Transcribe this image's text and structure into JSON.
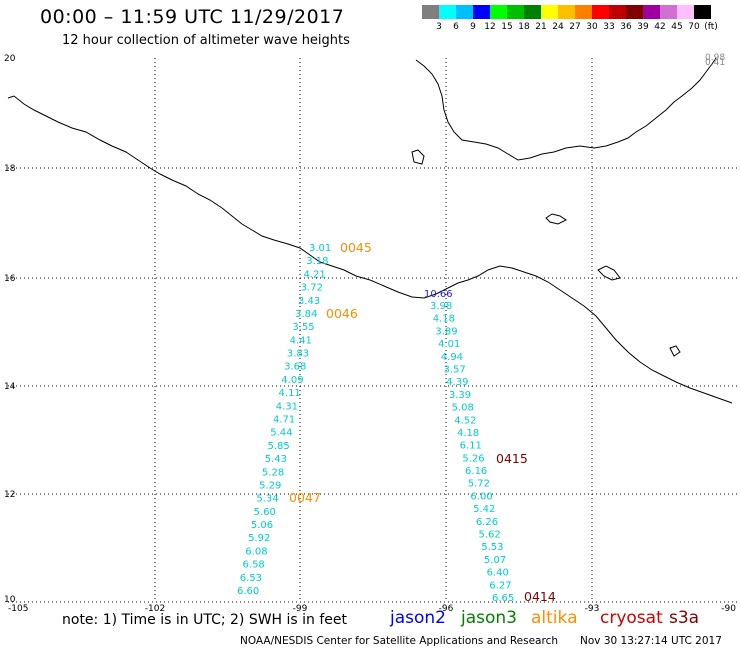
{
  "header": {
    "title": "00:00 – 11:59 UTC 11/29/2017",
    "subtitle": "12 hour collection of altimeter wave heights"
  },
  "legend": {
    "colors": [
      "#7f7f7f",
      "#00ffff",
      "#00bfff",
      "#0000ff",
      "#00ff00",
      "#00bf00",
      "#008000",
      "#ffff00",
      "#ffbf00",
      "#ff8000",
      "#ff0000",
      "#bf0000",
      "#800000",
      "#a000a0",
      "#d070d0",
      "#ffbfff",
      "#000000"
    ],
    "labels": [
      "3",
      "6",
      "9",
      "12",
      "15",
      "18",
      "21",
      "24",
      "27",
      "30",
      "33",
      "36",
      "39",
      "42",
      "45",
      "70",
      "(ft)"
    ]
  },
  "axes": {
    "lon_ticks": [
      "-105",
      "-102",
      "-99",
      "-96",
      "-93",
      "-90"
    ],
    "lat_ticks": [
      "20",
      "18",
      "16",
      "14",
      "12",
      "10"
    ]
  },
  "corner_labels": [
    "0.98",
    "0.41"
  ],
  "passes": [
    {
      "id": "0045",
      "color": "#ff8c00"
    },
    {
      "id": "0046",
      "color": "#ff8c00"
    },
    {
      "id": "0047",
      "color": "#ff8c00"
    },
    {
      "id": "0415",
      "color": "#800000"
    },
    {
      "id": "0414",
      "color": "#800000"
    }
  ],
  "track_west": {
    "color": "#00cccc",
    "values": [
      "3.01",
      "3.18",
      "4.21",
      "3.72",
      "3.43",
      "3.84",
      "3.55",
      "4.41",
      "3.83",
      "3.68",
      "4.09",
      "4.11",
      "4.31",
      "4.71",
      "5.44",
      "5.85",
      "5.43",
      "5.28",
      "5.29",
      "5.34",
      "5.60",
      "5.06",
      "5.92",
      "6.08",
      "6.58",
      "6.53",
      "6.60"
    ]
  },
  "track_east": {
    "first_value": "10.66",
    "first_color": "#1a1aff",
    "color": "#00cccc",
    "values": [
      "3.98",
      "4.18",
      "3.89",
      "4.01",
      "4.94",
      "3.57",
      "4.39",
      "3.39",
      "5.08",
      "4.52",
      "4.18",
      "6.11",
      "5.26",
      "6.16",
      "5.72",
      "6.00",
      "5.42",
      "6.26",
      "5.62",
      "5.53",
      "5.07",
      "6.40",
      "6.27",
      "6.65"
    ]
  },
  "footer": {
    "note": "note: 1) Time is in UTC; 2) SWH is in feet",
    "satellites": [
      {
        "name": "jason2",
        "color": "#0000ff"
      },
      {
        "name": "jason3",
        "color": "#008000"
      },
      {
        "name": "altika",
        "color": "#ff8c00"
      },
      {
        "name": "cryosat",
        "color": "#cc0000"
      },
      {
        "name": "s3a",
        "color": "#800000"
      }
    ],
    "credit": "NOAA/NESDIS Center for Satellite Applications and Research",
    "timestamp": "Nov 30 13:27:14 UTC 2017"
  }
}
